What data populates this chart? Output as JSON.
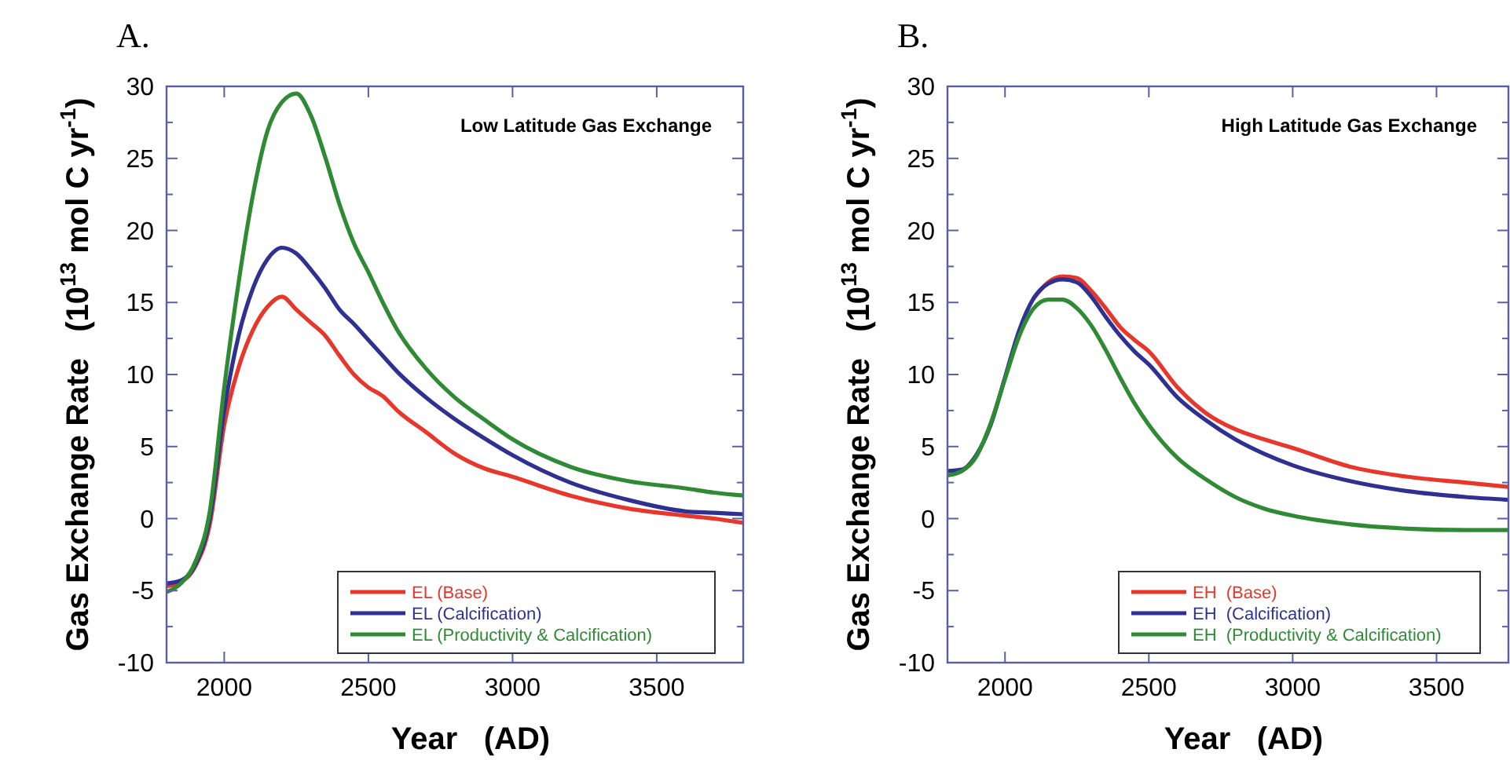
{
  "chart_data": [
    {
      "type": "line",
      "title": "A.",
      "xlabel": "Year   (AD)",
      "ylabel": "Gas Exchange Rate   (10$^{13}$ mol C yr$^{-1}$)",
      "annotations": [
        "Low Latitude Gas Exchange"
      ],
      "xlim": [
        1800,
        3800
      ],
      "ylim": [
        -10,
        30
      ],
      "xticks": [
        2000,
        2500,
        3000,
        3500
      ],
      "yticks": [
        -10,
        {
          "value": -7.5,
          "label": null
        },
        -5,
        {
          "value": -2.5,
          "label": null
        },
        0,
        {
          "value": 2.5,
          "label": null
        },
        5,
        {
          "value": 7.5,
          "label": null
        },
        10,
        {
          "value": 12.5,
          "label": null
        },
        15,
        {
          "value": 17.5,
          "label": null
        },
        20,
        {
          "value": 22.5,
          "label": null
        },
        25,
        {
          "value": 27.5,
          "label": null
        },
        30
      ],
      "legend": "bottom right",
      "grid": false,
      "line_style": "solid",
      "marker": "none",
      "x": [
        1800,
        1850,
        1900,
        1950,
        2000,
        2050,
        2100,
        2150,
        2200,
        2250,
        2300,
        2350,
        2400,
        2450,
        2500,
        2550,
        2600,
        2700,
        2800,
        2900,
        3000,
        3200,
        3400,
        3600,
        3700,
        3800
      ],
      "series": [
        {
          "name": "EL (Base)",
          "color": "#e8372a",
          "values": [
            -4.7,
            -4.4,
            -3.3,
            -0.4,
            6.5,
            10.5,
            13.1,
            14.7,
            15.4,
            14.5,
            13.6,
            12.7,
            11.3,
            10,
            9.1,
            8.5,
            7.5,
            6,
            4.5,
            3.5,
            2.9,
            1.6,
            0.7,
            0.2,
            0,
            -0.3
          ]
        },
        {
          "name": "EL (Calcification)",
          "color": "#2e3192",
          "values": [
            -4.5,
            -4.3,
            -3.2,
            0,
            7.5,
            12.7,
            16,
            18,
            18.8,
            18.4,
            17.3,
            16,
            14.5,
            13.5,
            12.4,
            11.3,
            10.2,
            8.4,
            6.9,
            5.6,
            4.4,
            2.5,
            1.3,
            0.5,
            0.4,
            0.3
          ]
        },
        {
          "name": "EL (Productivity & Calcification)",
          "color": "#2e8b34",
          "values": [
            -5.1,
            -4.5,
            -3,
            0.5,
            9.1,
            16.4,
            22.5,
            26.9,
            28.9,
            29.5,
            28,
            25.1,
            21.8,
            19.1,
            17.1,
            15,
            13.1,
            10.4,
            8.4,
            6.9,
            5.5,
            3.6,
            2.6,
            2.1,
            1.8,
            1.6
          ]
        }
      ]
    },
    {
      "type": "line",
      "title": "B.",
      "xlabel": "Year   (AD)",
      "ylabel": "Gas Exchange Rate   (10$^{13}$ mol C yr$^{-1}$)",
      "annotations": [
        "High Latitude Gas Exchange"
      ],
      "xlim": [
        1800,
        3750
      ],
      "ylim": [
        -10,
        30
      ],
      "xticks": [
        2000,
        2500,
        3000,
        3500
      ],
      "yticks": [
        -10,
        {
          "value": -7.5,
          "label": null
        },
        -5,
        {
          "value": -2.5,
          "label": null
        },
        0,
        {
          "value": 2.5,
          "label": null
        },
        5,
        {
          "value": 7.5,
          "label": null
        },
        10,
        {
          "value": 12.5,
          "label": null
        },
        15,
        {
          "value": 17.5,
          "label": null
        },
        20,
        {
          "value": 22.5,
          "label": null
        },
        25,
        {
          "value": 27.5,
          "label": null
        },
        30
      ],
      "legend": "bottom right",
      "grid": false,
      "line_style": "solid",
      "marker": "none",
      "x": [
        1800,
        1850,
        1900,
        1950,
        2000,
        2050,
        2100,
        2150,
        2200,
        2250,
        2300,
        2350,
        2400,
        2450,
        2500,
        2600,
        2700,
        2800,
        2900,
        3000,
        3200,
        3400,
        3600,
        3750
      ],
      "series": [
        {
          "name": "EH  (Base)",
          "color": "#e8372a",
          "values": [
            null,
            null,
            null,
            null,
            null,
            null,
            15.3,
            16.4,
            16.8,
            16.7,
            15.8,
            14.6,
            13.3,
            12.4,
            11.6,
            9.1,
            7.3,
            6.2,
            5.5,
            4.9,
            3.6,
            2.9,
            2.5,
            2.2
          ]
        },
        {
          "name": "EH  (Calcification)",
          "color": "#2e3192",
          "values": [
            3.3,
            3.4,
            4.4,
            6.5,
            9.8,
            13.1,
            15.3,
            16.3,
            16.6,
            16.4,
            15.4,
            14,
            12.7,
            11.6,
            10.7,
            8.4,
            6.8,
            5.5,
            4.5,
            3.7,
            2.6,
            1.9,
            1.5,
            1.3
          ]
        },
        {
          "name": "EH  (Productivity & Calcification)",
          "color": "#2e8b34",
          "values": [
            3,
            3.3,
            4.3,
            6.6,
            9.7,
            12.7,
            14.6,
            15.2,
            15.2,
            14.6,
            13.4,
            11.7,
            9.8,
            8,
            6.5,
            4.2,
            2.7,
            1.5,
            0.7,
            0.2,
            -0.4,
            -0.7,
            -0.8,
            -0.8
          ]
        }
      ]
    }
  ]
}
